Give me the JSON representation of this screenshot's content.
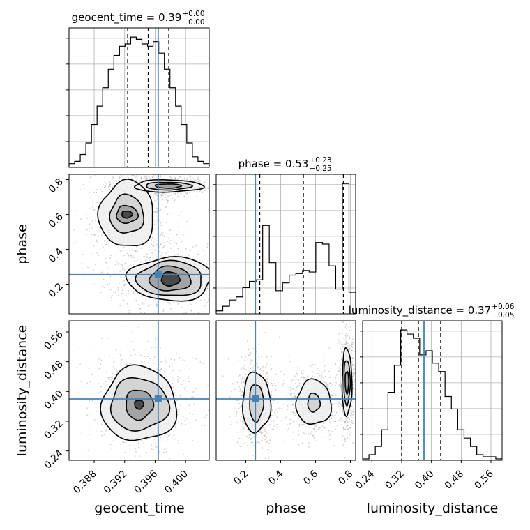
{
  "chart_data": {
    "type": "corner",
    "parameters": [
      "geocent_time",
      "phase",
      "luminosity_distance"
    ],
    "truths": {
      "geocent_time": 0.3964,
      "phase": 0.255,
      "luminosity_distance": 0.38
    },
    "colors": {
      "truth": "#4682b4",
      "histogram": "#000000",
      "contour": "#000000",
      "grid": "#b0b0b0",
      "points": "#9a9a9a"
    },
    "grid": true,
    "titles": [
      {
        "param": "geocent_time",
        "median": "0.39",
        "plus": "+0.00",
        "minus": "−0.00"
      },
      {
        "param": "phase",
        "median": "0.53",
        "plus": "+0.23",
        "minus": "−0.25"
      },
      {
        "param": "luminosity_distance",
        "median": "0.37",
        "plus": "+0.06",
        "minus": "−0.05"
      }
    ],
    "axis_labels": {
      "geocent_time": "geocent_time",
      "phase": "phase",
      "luminosity_distance": "luminosity_distance"
    },
    "ticks": {
      "geocent_time": [
        "0.388",
        "0.392",
        "0.396",
        "0.400"
      ],
      "phase": [
        "0.2",
        "0.4",
        "0.6",
        "0.8"
      ],
      "luminosity_distance": [
        "0.24",
        "0.32",
        "0.40",
        "0.48",
        "0.56"
      ]
    },
    "ranges": {
      "geocent_time": [
        0.3847,
        0.4031
      ],
      "phase": [
        0.03,
        0.83
      ],
      "luminosity_distance": [
        0.215,
        0.59
      ]
    },
    "quantiles": {
      "geocent_time": [
        0.3924,
        0.3951,
        0.3978
      ],
      "phase": [
        0.28,
        0.53,
        0.76
      ],
      "luminosity_distance": [
        0.32,
        0.365,
        0.425
      ]
    },
    "histograms": {
      "geocent_time": {
        "edges_start": 0.3847,
        "edges_end": 0.4031,
        "counts": [
          1,
          2,
          5,
          10,
          18,
          26,
          34,
          42,
          48,
          52,
          53,
          56,
          55,
          53,
          52,
          54,
          49,
          42,
          34,
          26,
          18,
          10,
          4,
          2,
          1
        ]
      },
      "phase": {
        "edges_start": 0.03,
        "edges_end": 0.83,
        "counts": [
          1,
          4,
          8,
          10,
          16,
          20,
          21,
          56,
          32,
          14,
          19,
          24,
          25,
          27,
          26,
          45,
          44,
          30,
          15,
          83,
          13
        ]
      },
      "luminosity_distance": {
        "edges_start": 0.215,
        "edges_end": 0.59,
        "counts": [
          0,
          2,
          6,
          14,
          32,
          45,
          62,
          60,
          58,
          50,
          52,
          46,
          42,
          30,
          24,
          14,
          10,
          6,
          2,
          1,
          1,
          0
        ]
      }
    },
    "contours_2d": {
      "phase_vs_geocent_time": [
        {
          "cx": 0.3977,
          "cy": 0.763,
          "levels": [
            [
              0.0017,
              0.012
            ],
            [
              0.003,
              0.022
            ],
            [
              0.0045,
              0.035
            ]
          ]
        },
        {
          "cx": 0.3923,
          "cy": 0.6,
          "levels": [
            [
              0.0007,
              0.02
            ],
            [
              0.0014,
              0.05
            ],
            [
              0.0022,
              0.11
            ],
            [
              0.0036,
              0.19
            ]
          ]
        },
        {
          "cx": 0.398,
          "cy": 0.23,
          "levels": [
            [
              0.0012,
              0.04
            ],
            [
              0.0027,
              0.07
            ],
            [
              0.0043,
              0.1
            ],
            [
              0.0055,
              0.125
            ]
          ]
        }
      ],
      "luminosity_distance_vs_geocent_time": [
        {
          "cx": 0.3939,
          "cy": 0.365,
          "levels": [
            [
              0.0006,
              0.012
            ],
            [
              0.0018,
              0.04
            ],
            [
              0.0038,
              0.07
            ],
            [
              0.0049,
              0.1
            ]
          ]
        }
      ],
      "luminosity_distance_vs_phase": [
        {
          "cx": 0.78,
          "cy": 0.425,
          "levels": [
            [
              0.01,
              0.03
            ],
            [
              0.018,
              0.06
            ],
            [
              0.028,
              0.09
            ]
          ]
        },
        {
          "cx": 0.26,
          "cy": 0.37,
          "levels": [
            [
              0.04,
              0.05
            ],
            [
              0.08,
              0.08
            ]
          ]
        },
        {
          "cx": 0.59,
          "cy": 0.37,
          "levels": [
            [
              0.035,
              0.025
            ],
            [
              0.1,
              0.06
            ]
          ]
        }
      ]
    }
  }
}
